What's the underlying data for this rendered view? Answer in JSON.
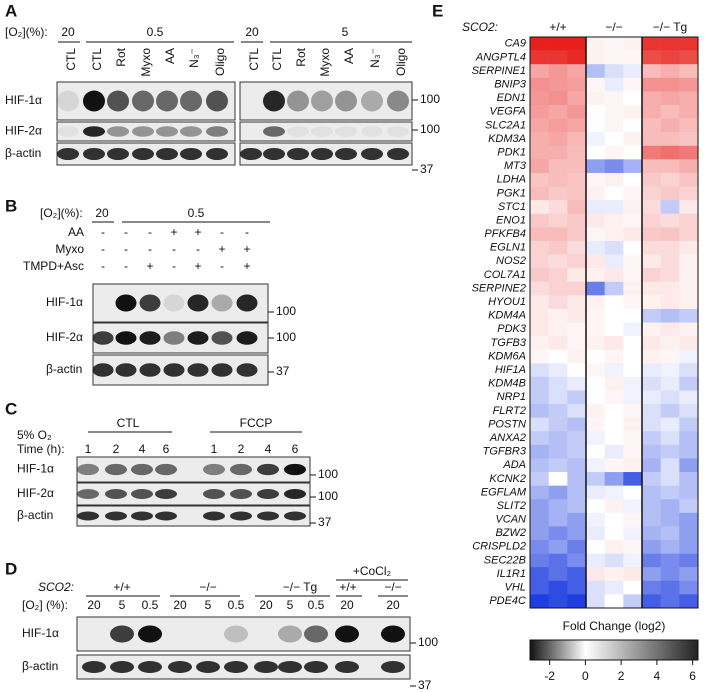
{
  "panel_a": {
    "letter": "A",
    "o2_label": "[O₂](%):",
    "conditions": [
      "20",
      "0.5",
      "20",
      "5"
    ],
    "lanes": [
      "CTL",
      "CTL",
      "Rot",
      "Myxo",
      "AA",
      "N₃⁻",
      "Oligo",
      "CTL",
      "CTL",
      "Rot",
      "Myxo",
      "AA",
      "N₃⁻",
      "Oligo"
    ],
    "rows": [
      "HIF-1α",
      "HIF-2α",
      "β-actin"
    ],
    "markers": [
      "100",
      "100",
      "37"
    ]
  },
  "panel_b": {
    "letter": "B",
    "o2_label": "[O₂](%):",
    "conditions": [
      "20",
      "0.5"
    ],
    "treatments": [
      {
        "name": "AA",
        "signs": [
          "-",
          "-",
          "-",
          "+",
          "+",
          "-",
          "-"
        ]
      },
      {
        "name": "Myxo",
        "signs": [
          "-",
          "-",
          "-",
          "-",
          "-",
          "+",
          "+"
        ]
      },
      {
        "name": "TMPD+Asc",
        "signs": [
          "-",
          "-",
          "+",
          "-",
          "+",
          "-",
          "+"
        ]
      }
    ],
    "rows": [
      "HIF-1α",
      "HIF-2α",
      "β-actin"
    ],
    "markers": [
      "100",
      "100",
      "37"
    ]
  },
  "panel_c": {
    "letter": "C",
    "groups": [
      "CTL",
      "FCCP"
    ],
    "o2_label": "5% O₂",
    "time_label": "Time (h):",
    "times": [
      "1",
      "2",
      "4",
      "6",
      "1",
      "2",
      "4",
      "6"
    ],
    "rows": [
      "HIF-1α",
      "HIF-2α",
      "β-actin"
    ],
    "markers": [
      "100",
      "100",
      "37"
    ]
  },
  "panel_d": {
    "letter": "D",
    "genotype_label": "SCO2:",
    "groups": [
      "+/+",
      "−/−",
      "−/− Tg",
      "+/+",
      "−/−"
    ],
    "treatment": "+CoCl₂",
    "o2_label": "[O₂] (%):",
    "o2_values": [
      "20",
      "5",
      "0.5",
      "20",
      "5",
      "0.5",
      "20",
      "5",
      "0.5",
      "20",
      "20"
    ],
    "rows": [
      "HIF-1α",
      "β-actin"
    ],
    "markers": [
      "100",
      "37"
    ]
  },
  "chart_data": {
    "type": "heatmap",
    "letter": "E",
    "genotype_label": "SCO2:",
    "groups": [
      "+/+",
      "−/−",
      "−/− Tg"
    ],
    "categories": [
      "CA9",
      "ANGPTL4",
      "SERPINE1",
      "BNIP3",
      "EDN1",
      "VEGFA",
      "SLC2A1",
      "KDM3A",
      "PDK1",
      "MT3",
      "LDHA",
      "PGK1",
      "STC1",
      "ENO1",
      "PFKFB4",
      "EGLN1",
      "NOS2",
      "COL7A1",
      "SERPINE2",
      "HYOU1",
      "KDM4A",
      "PDK3",
      "TGFB3",
      "KDM6A",
      "HIF1A",
      "KDM4B",
      "NRP1",
      "FLRT2",
      "POSTN",
      "ANXA2",
      "TGFBR3",
      "ADA",
      "KCNK2",
      "EGFLAM",
      "SLIT2",
      "VCAN",
      "BZW2",
      "CRISPLD2",
      "SEC22B",
      "IL1R1",
      "VHL",
      "PDE4C"
    ],
    "values": [
      [
        5,
        5,
        5,
        0.3,
        0.2,
        0.3,
        4.5,
        4.5,
        4.5
      ],
      [
        4.5,
        4.5,
        4.8,
        0.3,
        0.2,
        0.2,
        4,
        4.2,
        4
      ],
      [
        2,
        2.3,
        2,
        -1,
        -0.5,
        -0.3,
        1.5,
        1.8,
        1.5
      ],
      [
        2.5,
        2.3,
        2.2,
        0.2,
        -0.3,
        0.2,
        2.5,
        2.5,
        2.3
      ],
      [
        2.3,
        2.5,
        2,
        0.3,
        0.2,
        0,
        1.8,
        2,
        1.8
      ],
      [
        2.2,
        2,
        2.3,
        0,
        0.2,
        0.3,
        1.8,
        1.5,
        1.8
      ],
      [
        2,
        2.2,
        2,
        0,
        0.2,
        0,
        1.5,
        1.8,
        1.5
      ],
      [
        1.8,
        2,
        1.6,
        -0.2,
        0,
        0.3,
        1.5,
        1.5,
        1.3
      ],
      [
        1.8,
        1.8,
        1.5,
        0,
        0.2,
        0,
        3,
        3.2,
        3
      ],
      [
        2,
        1.5,
        1.5,
        -1.5,
        -1.8,
        -1.2,
        1.5,
        1.5,
        1.8
      ],
      [
        1.3,
        1.5,
        1.3,
        0.2,
        0.3,
        0,
        1.2,
        1,
        1.3
      ],
      [
        1.5,
        1.2,
        1.3,
        0.3,
        0,
        0.2,
        1,
        1.2,
        1
      ],
      [
        0.5,
        0.8,
        1.5,
        -0.3,
        -0.3,
        0.3,
        0.8,
        -0.8,
        0.5
      ],
      [
        1.2,
        1,
        1.2,
        0.5,
        0.3,
        0.2,
        1,
        0.8,
        1
      ],
      [
        1.5,
        1.5,
        1.2,
        0.2,
        0.3,
        0.5,
        1.2,
        1.3,
        1
      ],
      [
        1,
        1.2,
        0.8,
        -0.3,
        -0.5,
        0,
        0.8,
        0.8,
        0.5
      ],
      [
        1,
        0.8,
        1,
        0.5,
        -0.3,
        0.2,
        0.5,
        0.8,
        0.3
      ],
      [
        1.2,
        1,
        0.5,
        0.3,
        0.5,
        0.2,
        1,
        0.8,
        0.3
      ],
      [
        0.8,
        1,
        1,
        -2,
        -0.8,
        0.3,
        0.5,
        0.5,
        0.3
      ],
      [
        0.5,
        0.8,
        0.5,
        0.3,
        0,
        0.2,
        0.3,
        0.5,
        0.3
      ],
      [
        0.5,
        0.3,
        0.5,
        0.2,
        0,
        0,
        -0.8,
        -1,
        -0.8
      ],
      [
        0.5,
        0.3,
        0.2,
        0.2,
        0,
        -0.2,
        0.3,
        0.5,
        0.3
      ],
      [
        0.3,
        0.5,
        0.2,
        0.3,
        0.5,
        0,
        0.5,
        0.3,
        0.5
      ],
      [
        0.2,
        0,
        0.3,
        0,
        0.2,
        0,
        0.3,
        0.2,
        -0.2
      ],
      [
        -0.5,
        -0.3,
        0,
        0.2,
        -0.2,
        0,
        -0.3,
        -0.2,
        -0.5
      ],
      [
        -0.8,
        -0.5,
        -0.3,
        0,
        0.3,
        -0.2,
        -0.5,
        -0.3,
        -0.8
      ],
      [
        -0.8,
        -0.5,
        -0.8,
        0,
        0.2,
        -0.2,
        -0.3,
        -0.5,
        -0.3
      ],
      [
        -1,
        -0.8,
        -0.5,
        0.3,
        0,
        0.2,
        -0.5,
        -0.8,
        -0.5
      ],
      [
        -0.5,
        -0.8,
        -1,
        0.2,
        0,
        0.3,
        -0.5,
        -0.3,
        -0.8
      ],
      [
        -0.8,
        -1,
        -0.8,
        -0.2,
        0,
        0.2,
        -0.8,
        -0.5,
        -1
      ],
      [
        -1.2,
        -1,
        -0.8,
        0,
        -0.3,
        0.2,
        -1,
        -0.8,
        -1
      ],
      [
        -1,
        -0.8,
        -1,
        -0.2,
        0.2,
        0.3,
        -1.2,
        -0.5,
        -1.5
      ],
      [
        -0.8,
        0,
        -1,
        -0.8,
        -1.5,
        -2.5,
        -0.8,
        -0.5,
        -1
      ],
      [
        -1.2,
        -1.5,
        -1,
        -0.3,
        -0.2,
        0,
        -1,
        -0.8,
        -1
      ],
      [
        -1.5,
        -1.2,
        -1,
        0,
        0.3,
        -0.2,
        -1,
        -1.2,
        -0.8
      ],
      [
        -1.5,
        -1.2,
        -1.5,
        -0.2,
        0,
        0.2,
        -1,
        -1.2,
        -1.5
      ],
      [
        -1.5,
        -1.8,
        -1.5,
        -0.3,
        0,
        -0.2,
        -1.2,
        -1,
        -1.5
      ],
      [
        -1.8,
        -1.5,
        -2,
        0,
        0.3,
        0.2,
        -1.5,
        -1.2,
        -1.5
      ],
      [
        -2,
        -2.2,
        -1.8,
        -0.3,
        -0.5,
        -0.2,
        -2,
        -1.8,
        -2
      ],
      [
        -2.5,
        -2.2,
        -2.5,
        0.5,
        0.3,
        0.5,
        -1.5,
        -1.8,
        -1.5
      ],
      [
        -2.5,
        -2.8,
        -2.5,
        -0.5,
        -0.3,
        0,
        -2,
        -2.2,
        -1.8
      ],
      [
        -3,
        -2.8,
        -3,
        -0.5,
        0,
        -0.8,
        -2.5,
        -2.2,
        -2.5
      ]
    ],
    "colorbar_title": "Fold Change (log2)",
    "clim": [
      -3.1,
      6.3
    ],
    "cticks": [
      -2,
      0,
      2,
      4,
      6
    ]
  }
}
